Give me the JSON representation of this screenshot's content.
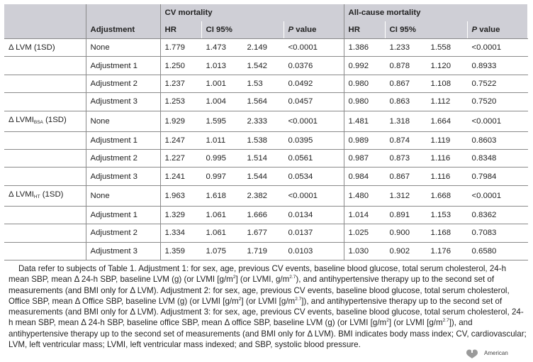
{
  "headers": {
    "adjustment": "Adjustment",
    "cv_group": "CV mortality",
    "all_group": "All-cause mortality",
    "hr": "HR",
    "ci": "CI 95%",
    "p_italic": "P",
    "p_rest": " value"
  },
  "groups": [
    {
      "label_main": "Δ LVM (1SD)",
      "label_sub": "",
      "label_tail": "",
      "rows": [
        {
          "adj": "None",
          "cv_hr": "1.779",
          "cv_lo": "1.473",
          "cv_hi": "2.149",
          "cv_p": "<0.0001",
          "ac_hr": "1.386",
          "ac_lo": "1.233",
          "ac_hi": "1.558",
          "ac_p": "<0.0001"
        },
        {
          "adj": "Adjustment 1",
          "cv_hr": "1.250",
          "cv_lo": "1.013",
          "cv_hi": "1.542",
          "cv_p": "0.0376",
          "ac_hr": "0.992",
          "ac_lo": "0.878",
          "ac_hi": "1.120",
          "ac_p": "0.8933"
        },
        {
          "adj": "Adjustment 2",
          "cv_hr": "1.237",
          "cv_lo": "1.001",
          "cv_hi": "1.53",
          "cv_p": "0.0492",
          "ac_hr": "0.980",
          "ac_lo": "0.867",
          "ac_hi": "1.108",
          "ac_p": "0.7522"
        },
        {
          "adj": "Adjustment 3",
          "cv_hr": "1.253",
          "cv_lo": "1.004",
          "cv_hi": "1.564",
          "cv_p": "0.0457",
          "ac_hr": "0.980",
          "ac_lo": "0.863",
          "ac_hi": "1.112",
          "ac_p": "0.7520"
        }
      ]
    },
    {
      "label_main": "Δ LVMI",
      "label_sub": "BSA",
      "label_tail": " (1SD)",
      "rows": [
        {
          "adj": "None",
          "cv_hr": "1.929",
          "cv_lo": "1.595",
          "cv_hi": "2.333",
          "cv_p": "<0.0001",
          "ac_hr": "1.481",
          "ac_lo": "1.318",
          "ac_hi": "1.664",
          "ac_p": "<0.0001"
        },
        {
          "adj": "Adjustment 1",
          "cv_hr": "1.247",
          "cv_lo": "1.011",
          "cv_hi": "1.538",
          "cv_p": "0.0395",
          "ac_hr": "0.989",
          "ac_lo": "0.874",
          "ac_hi": "1.119",
          "ac_p": "0.8603"
        },
        {
          "adj": "Adjustment 2",
          "cv_hr": "1.227",
          "cv_lo": "0.995",
          "cv_hi": "1.514",
          "cv_p": "0.0561",
          "ac_hr": "0.987",
          "ac_lo": "0.873",
          "ac_hi": "1.116",
          "ac_p": "0.8348"
        },
        {
          "adj": "Adjustment 3",
          "cv_hr": "1.241",
          "cv_lo": "0.997",
          "cv_hi": "1.544",
          "cv_p": "0.0534",
          "ac_hr": "0.984",
          "ac_lo": "0.867",
          "ac_hi": "1.116",
          "ac_p": "0.7984"
        }
      ]
    },
    {
      "label_main": "Δ LVMI",
      "label_sub": "HT",
      "label_tail": " (1SD)",
      "rows": [
        {
          "adj": "None",
          "cv_hr": "1.963",
          "cv_lo": "1.618",
          "cv_hi": "2.382",
          "cv_p": "<0.0001",
          "ac_hr": "1.480",
          "ac_lo": "1.312",
          "ac_hi": "1.668",
          "ac_p": "<0.0001"
        },
        {
          "adj": "Adjustment 1",
          "cv_hr": "1.329",
          "cv_lo": "1.061",
          "cv_hi": "1.666",
          "cv_p": "0.0134",
          "ac_hr": "1.014",
          "ac_lo": "0.891",
          "ac_hi": "1.153",
          "ac_p": "0.8362"
        },
        {
          "adj": "Adjustment 2",
          "cv_hr": "1.334",
          "cv_lo": "1.061",
          "cv_hi": "1.677",
          "cv_p": "0.0137",
          "ac_hr": "1.025",
          "ac_lo": "0.900",
          "ac_hi": "1.168",
          "ac_p": "0.7083"
        },
        {
          "adj": "Adjustment 3",
          "cv_hr": "1.359",
          "cv_lo": "1.075",
          "cv_hi": "1.719",
          "cv_p": "0.0103",
          "ac_hr": "1.030",
          "ac_lo": "0.902",
          "ac_hi": "1.176",
          "ac_p": "0.6580"
        }
      ]
    }
  ],
  "footnote": {
    "p1": "Data refer to subjects of Table 1. Adjustment 1: for sex, age, previous CV events, baseline blood glucose, total serum cholesterol, 24-h mean SBP, mean Δ 24-h SBP, baseline LVM (g) (or LVMI [g/m",
    "s1": "2",
    "p2": "] (or LVMI, g/m",
    "s2": "2.7",
    "p3": "), and antihypertensive therapy up to the second set of measurements (and BMI only for Δ LVM). Adjustment 2: for sex, age, previous CV events, baseline blood glucose, total serum cholesterol, Office SBP, mean Δ Office SBP, baseline LVM (g) (or LVMI [g/m",
    "s3": "2",
    "p4": "] (or LVMI [g/m",
    "s4": "2.7",
    "p5": "]), and antihypertensive therapy up to the second set of measurements (and BMI only for Δ LVM). Adjustment 3: for sex, age, previous CV events, baseline blood glucose, total serum cholesterol, 24-h mean SBP, mean Δ 24-h SBP, baseline office SBP, mean Δ office SBP, baseline LVM (g) (or LVMI [g/m",
    "s5": "2",
    "p6": "] (or LVMI [g/m",
    "s6": "2.7",
    "p7": "]), and antihypertensive therapy up to the second set of measurements (and BMI only for Δ LVM). BMI indicates body mass index; CV, cardiovascular; LVM, left ventricular mass; LVMI, left ventricular mass indexed; and SBP, systolic blood pressure."
  },
  "logo": {
    "text": "American",
    "icon": "heart-torch-icon"
  }
}
